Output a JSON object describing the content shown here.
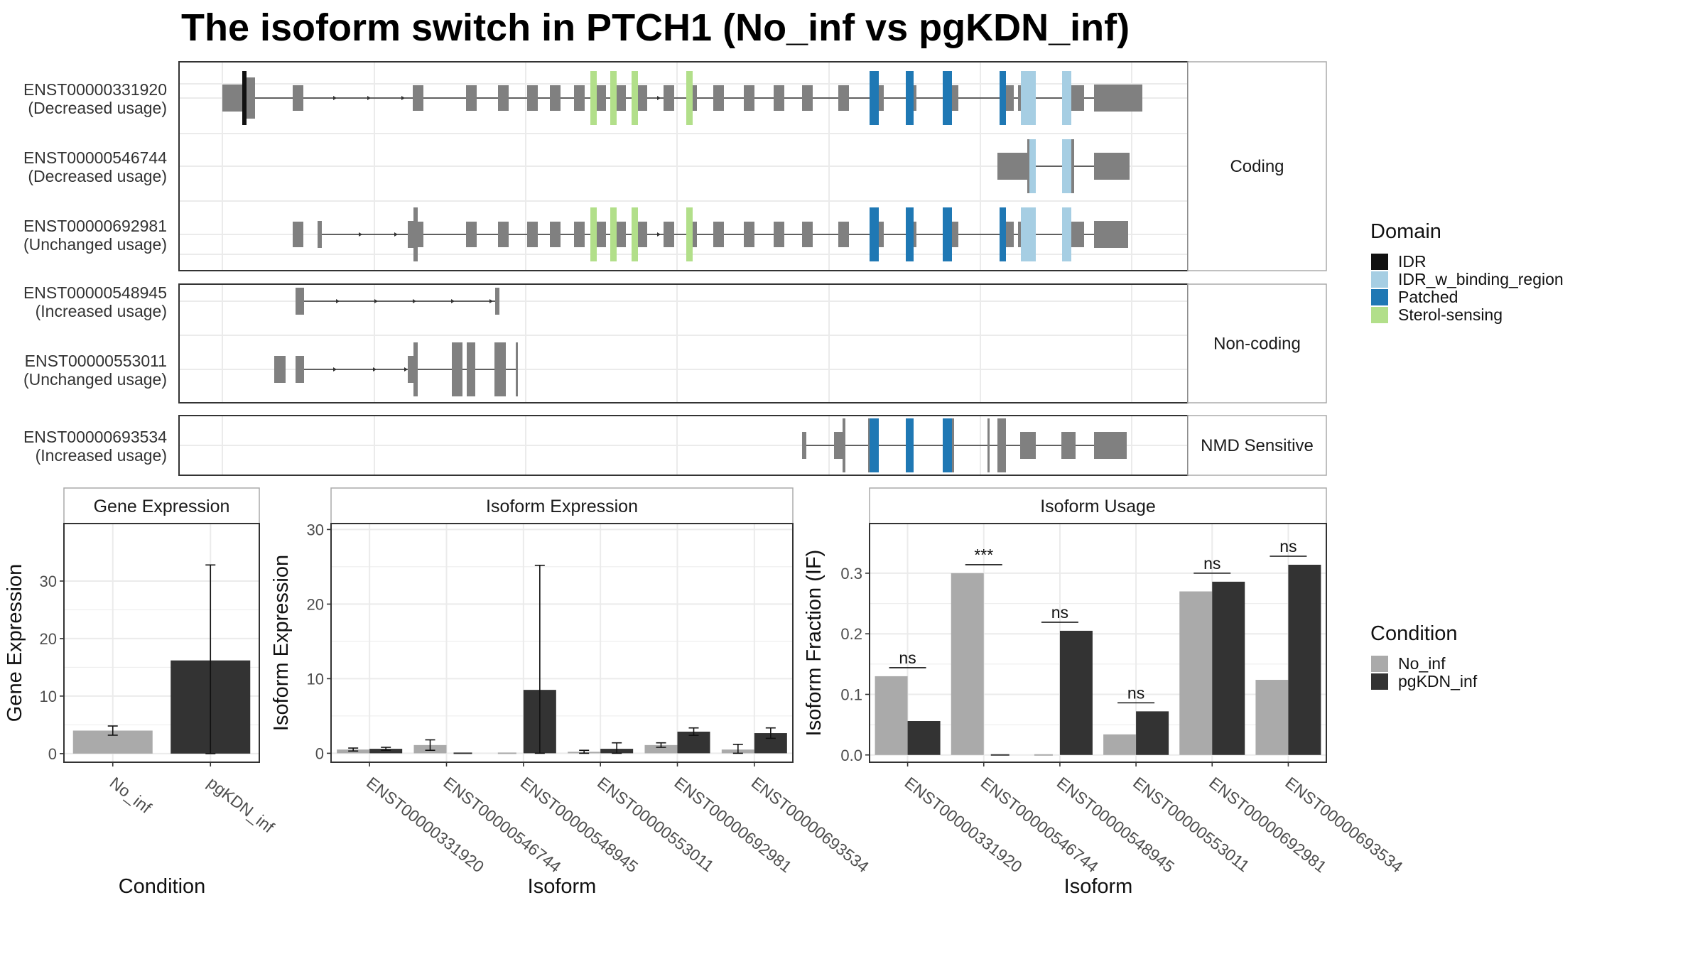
{
  "title": "The isoform switch in PTCH1 (No_inf vs pgKDN_inf)",
  "colors": {
    "exon": "#808080",
    "intron": "#333333",
    "IDR": "#111111",
    "IDR_w_binding_region": "#a6cee3",
    "Patched": "#1f78b4",
    "Sterol-sensing": "#b2df8a",
    "No_inf": "#aaaaaa",
    "pgKDN_inf": "#333333",
    "grid": "#ebebeb",
    "border": "#333333"
  },
  "structure": {
    "groups": [
      {
        "label": "Coding",
        "isoforms": [
          {
            "id": "ENST00000331920",
            "usage": "(Decreased usage)"
          },
          {
            "id": "ENST00000546744",
            "usage": "(Decreased usage)"
          },
          {
            "id": "ENST00000692981",
            "usage": "(Unchanged usage)"
          }
        ]
      },
      {
        "label": "Non-coding",
        "isoforms": [
          {
            "id": "ENST00000548945",
            "usage": "(Increased usage)"
          },
          {
            "id": "ENST00000553011",
            "usage": "(Unchanged usage)"
          }
        ]
      },
      {
        "label": "NMD Sensitive",
        "isoforms": [
          {
            "id": "ENST00000693534",
            "usage": "(Increased usage)"
          }
        ]
      }
    ]
  },
  "legend_domain": {
    "title": "Domain",
    "items": [
      "IDR",
      "IDR_w_binding_region",
      "Patched",
      "Sterol-sensing"
    ]
  },
  "legend_condition": {
    "title": "Condition",
    "items": [
      "No_inf",
      "pgKDN_inf"
    ]
  },
  "chart_data": [
    {
      "type": "bar",
      "title": "Gene Expression",
      "xlabel": "Condition",
      "ylabel": "Gene Expression",
      "categories": [
        "No_inf",
        "pgKDN_inf"
      ],
      "values": [
        4.0,
        16.2
      ],
      "error": [
        [
          3.2,
          4.8
        ],
        [
          0,
          32.8
        ]
      ],
      "ylim": [
        -1.5,
        40
      ],
      "yticks": [
        0,
        10,
        20,
        30
      ],
      "grid": true
    },
    {
      "type": "bar",
      "title": "Isoform Expression",
      "xlabel": "Isoform",
      "ylabel": "Isoform Expression",
      "categories": [
        "ENST00000331920",
        "ENST00000546744",
        "ENST00000548945",
        "ENST00000553011",
        "ENST00000692981",
        "ENST00000693534"
      ],
      "series": [
        {
          "name": "No_inf",
          "values": [
            0.5,
            1.1,
            0.0,
            0.2,
            1.1,
            0.5
          ],
          "error": [
            [
              0.3,
              0.7
            ],
            [
              0.4,
              1.8
            ],
            [
              0,
              0
            ],
            [
              0,
              0.4
            ],
            [
              0.8,
              1.4
            ],
            [
              0,
              1.2
            ]
          ]
        },
        {
          "name": "pgKDN_inf",
          "values": [
            0.6,
            0.0,
            8.5,
            0.6,
            2.9,
            2.7
          ],
          "error": [
            [
              0.4,
              0.8
            ],
            [
              0,
              0
            ],
            [
              0,
              25.2
            ],
            [
              0,
              1.4
            ],
            [
              2.4,
              3.4
            ],
            [
              2.0,
              3.4
            ]
          ]
        }
      ],
      "ylim": [
        -1.2,
        30.8
      ],
      "yticks": [
        0,
        10,
        20,
        30
      ],
      "grid": true
    },
    {
      "type": "bar",
      "title": "Isoform Usage",
      "xlabel": "Isoform",
      "ylabel": "Isoform Fraction (IF)",
      "categories": [
        "ENST00000331920",
        "ENST00000546744",
        "ENST00000548945",
        "ENST00000553011",
        "ENST00000692981",
        "ENST00000693534"
      ],
      "series": [
        {
          "name": "No_inf",
          "values": [
            0.13,
            0.3,
            0.0,
            0.034,
            0.27,
            0.124
          ]
        },
        {
          "name": "pgKDN_inf",
          "values": [
            0.056,
            0.0,
            0.205,
            0.072,
            0.286,
            0.314
          ]
        }
      ],
      "significance": [
        "ns",
        "***",
        "ns",
        "ns",
        "ns",
        "ns"
      ],
      "ylim": [
        -0.012,
        0.382
      ],
      "yticks": [
        "0.0",
        "0.1",
        "0.2",
        "0.3"
      ],
      "grid": true
    }
  ]
}
